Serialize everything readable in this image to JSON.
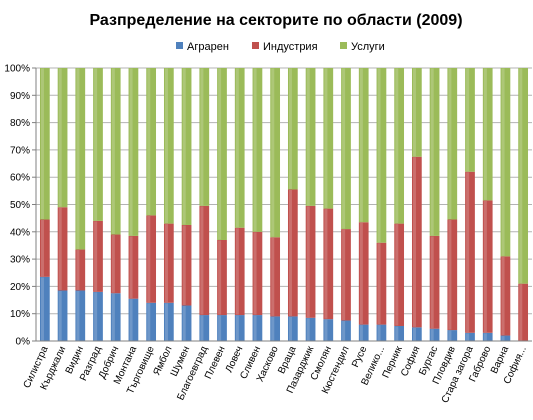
{
  "chart_data": {
    "type": "bar",
    "stacked": true,
    "percent_stacked": true,
    "title": "Разпределение на секторите по области (2009)",
    "categories": [
      "Силистра",
      "Кърджали",
      "Видин",
      "Разград",
      "Добрич",
      "Монтана",
      "Търговище",
      "Ямбол",
      "Шумен",
      "Благоевград",
      "Плевен",
      "Ловеч",
      "Сливен",
      "Хасково",
      "Враца",
      "Пазарджик",
      "Смолян",
      "Кюстендил",
      "Русе",
      "Велико...",
      "Перник",
      "София",
      "Бургас",
      "Пловдив",
      "Стара загора",
      "Габрово",
      "Варна",
      "София..."
    ],
    "series": [
      {
        "name": "Аграрен",
        "color": "#4f81bd",
        "values": [
          23.5,
          18.5,
          18.5,
          18,
          17.5,
          15.5,
          14,
          14,
          13,
          9.5,
          9.5,
          9.5,
          9.5,
          9,
          9,
          8.5,
          8,
          7.5,
          6,
          6,
          5.5,
          5,
          4.5,
          4,
          3,
          3,
          2,
          0
        ]
      },
      {
        "name": "Индустрия",
        "color": "#c0504d",
        "values": [
          21,
          30.5,
          15,
          26,
          21.5,
          23,
          32,
          29,
          29.5,
          40,
          27.5,
          32,
          30.5,
          29,
          46.5,
          41,
          40.5,
          33.5,
          37.5,
          30,
          37.5,
          62.5,
          34,
          40.5,
          59,
          48.5,
          29,
          21
        ]
      },
      {
        "name": "Услуги",
        "color": "#9bbb59",
        "values": [
          55.5,
          51,
          66.5,
          56,
          61,
          61.5,
          54,
          57,
          57.5,
          50.5,
          63,
          58.5,
          60,
          62,
          44.5,
          50.5,
          51.5,
          59,
          56.5,
          64,
          57,
          32.5,
          61.5,
          55.5,
          38,
          48.5,
          69,
          79
        ]
      }
    ],
    "y_ticks": [
      "0%",
      "10%",
      "20%",
      "30%",
      "40%",
      "50%",
      "60%",
      "70%",
      "80%",
      "90%",
      "100%"
    ],
    "ylim": [
      0,
      100
    ],
    "grid": true,
    "legend_position": "top"
  }
}
